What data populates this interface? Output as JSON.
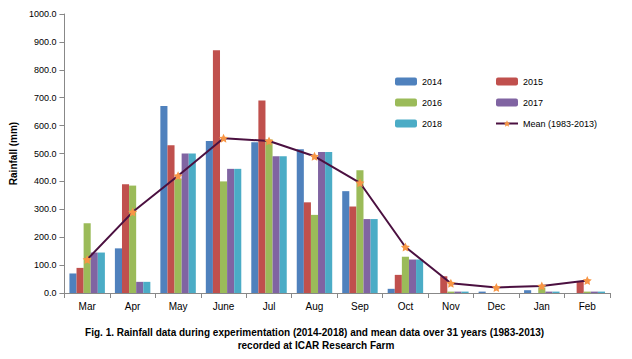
{
  "chart_data": {
    "type": "bar",
    "title": "Fig. 1. Rainfall data during experimentation (2014-2018) and mean data over 31 years (1983-2013) recorded at ICAR Research Farm",
    "y_label": "Rainfall (mm)",
    "categories": [
      "Mar",
      "Apr",
      "May",
      "June",
      "Jul",
      "Aug",
      "Sep",
      "Oct",
      "Nov",
      "Dec",
      "Jan",
      "Feb"
    ],
    "series": [
      {
        "name": "2014",
        "type": "bar",
        "color": "#4F81BD",
        "values": [
          70,
          160,
          670,
          545,
          540,
          515,
          365,
          15,
          0,
          5,
          10,
          0
        ]
      },
      {
        "name": "2015",
        "type": "bar",
        "color": "#C0504D",
        "values": [
          90,
          390,
          530,
          870,
          690,
          325,
          310,
          65,
          60,
          0,
          0,
          40
        ]
      },
      {
        "name": "2016",
        "type": "bar",
        "color": "#9BBB59",
        "values": [
          250,
          385,
          410,
          400,
          550,
          280,
          440,
          130,
          5,
          0,
          20,
          5
        ]
      },
      {
        "name": "2017",
        "type": "bar",
        "color": "#8064A2",
        "values": [
          145,
          40,
          500,
          445,
          490,
          505,
          265,
          120,
          5,
          0,
          5,
          5
        ]
      },
      {
        "name": "2018",
        "type": "bar",
        "color": "#4BACC6",
        "values": [
          145,
          40,
          500,
          445,
          490,
          505,
          265,
          120,
          5,
          0,
          5,
          5
        ]
      },
      {
        "name": "Mean (1983-2013)",
        "type": "line",
        "color": "#4B1040",
        "marker": "star",
        "line_style": "solid",
        "values": [
          120,
          290,
          420,
          555,
          545,
          490,
          395,
          165,
          35,
          20,
          25,
          45
        ]
      }
    ],
    "ylim": [
      0,
      1000
    ],
    "yticks": [
      {
        "value": 0,
        "label": "0.0"
      },
      {
        "value": 100,
        "label": "100.0"
      },
      {
        "value": 200,
        "label": "200.0"
      },
      {
        "value": 300,
        "label": "300.0"
      },
      {
        "value": 400,
        "label": "400.0"
      },
      {
        "value": 500,
        "label": "500.0"
      },
      {
        "value": 600,
        "label": "600.0"
      },
      {
        "value": 700,
        "label": "700.0"
      },
      {
        "value": 800,
        "label": "800.0"
      },
      {
        "value": 900,
        "label": "900.0"
      },
      {
        "value": 1000,
        "label": "1000.0"
      }
    ],
    "grid": false,
    "legend": "upper right",
    "data_labels": false
  }
}
